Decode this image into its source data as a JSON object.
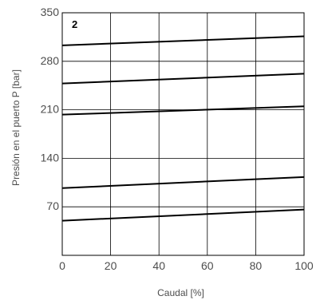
{
  "chart_data": {
    "type": "line",
    "panel_label": "2",
    "xlabel": "Caudal [%]",
    "ylabel": "Presión en el puerto P [bar]",
    "xlim": [
      0,
      100
    ],
    "ylim": [
      0,
      350
    ],
    "xticks": [
      0,
      20,
      40,
      60,
      80,
      100
    ],
    "yticks": [
      70,
      140,
      210,
      280,
      350
    ],
    "grid": true,
    "series": [
      {
        "x": [
          0,
          100
        ],
        "y": [
          303,
          316
        ]
      },
      {
        "x": [
          0,
          100
        ],
        "y": [
          248,
          262
        ]
      },
      {
        "x": [
          0,
          100
        ],
        "y": [
          203,
          215
        ]
      },
      {
        "x": [
          0,
          100
        ],
        "y": [
          97,
          113
        ]
      },
      {
        "x": [
          0,
          100
        ],
        "y": [
          50,
          66
        ]
      }
    ]
  }
}
